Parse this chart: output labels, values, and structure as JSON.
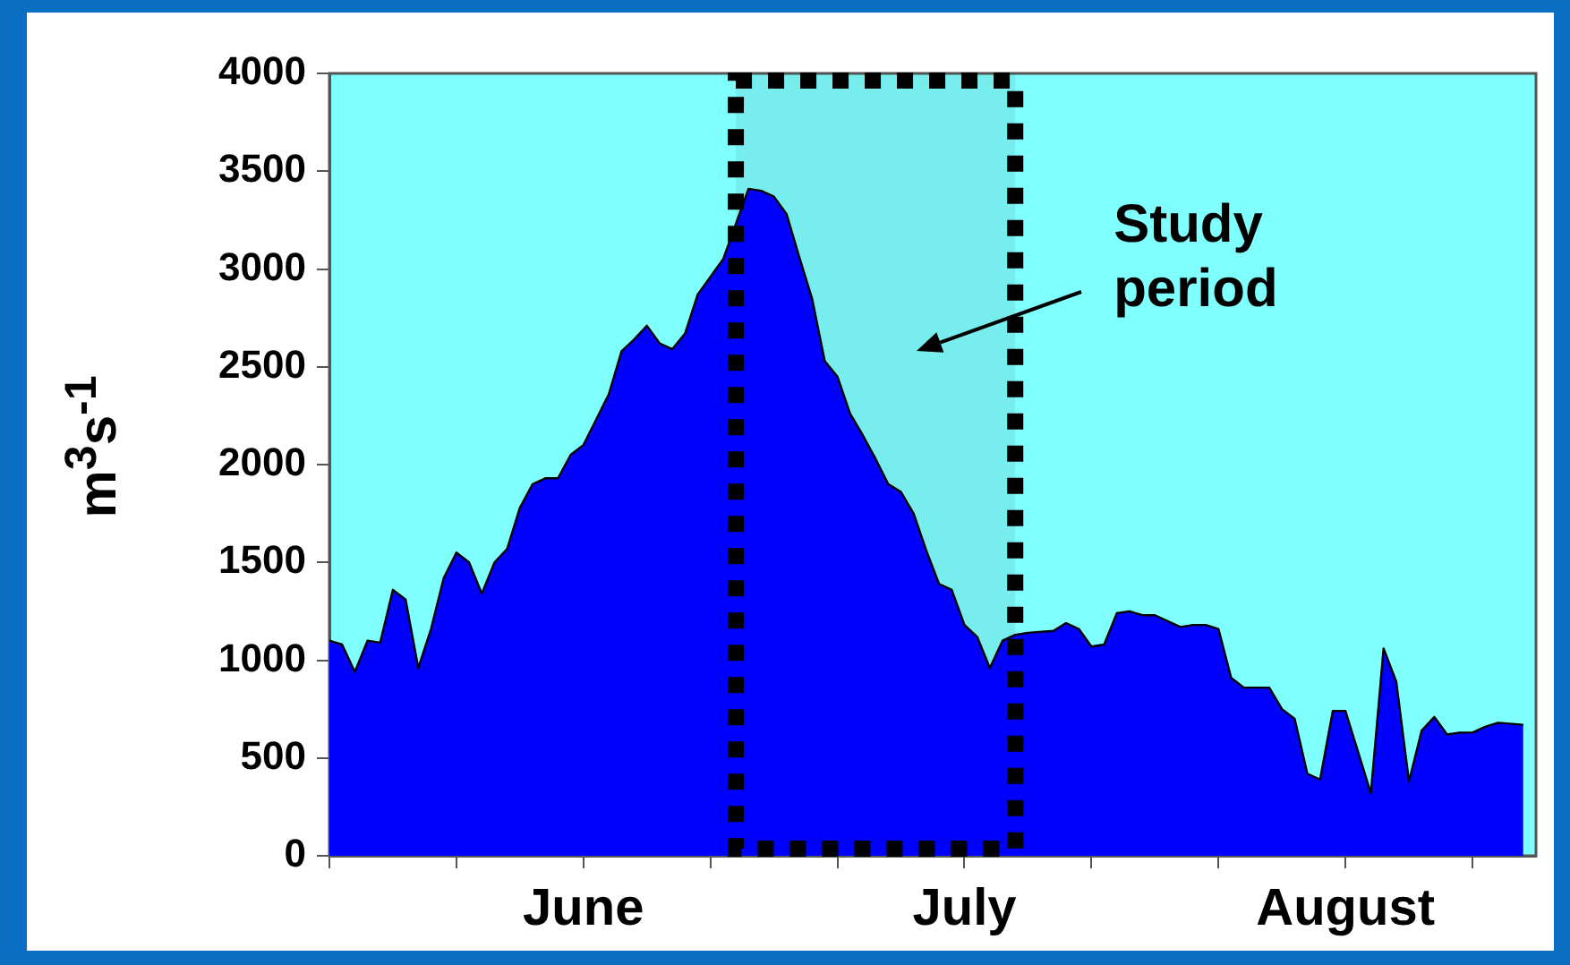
{
  "chart_data": {
    "type": "area",
    "ylabel": "m$^{3}$s$^{-1}$",
    "x": [
      "--05-26",
      "--05-27",
      "--05-28",
      "--05-29",
      "--05-30",
      "--05-31",
      "--06-01",
      "--06-02",
      "--06-03",
      "--06-04",
      "--06-05",
      "--06-06",
      "--06-07",
      "--06-08",
      "--06-09",
      "--06-10",
      "--06-11",
      "--06-12",
      "--06-13",
      "--06-14",
      "--06-15",
      "--06-16",
      "--06-17",
      "--06-18",
      "--06-19",
      "--06-20",
      "--06-21",
      "--06-22",
      "--06-23",
      "--06-24",
      "--06-25",
      "--06-26",
      "--06-27",
      "--06-28",
      "--06-29",
      "--06-30",
      "--07-01",
      "--07-02",
      "--07-03",
      "--07-04",
      "--07-05",
      "--07-06",
      "--07-07",
      "--07-08",
      "--07-09",
      "--07-10",
      "--07-11",
      "--07-12",
      "--07-13",
      "--07-14",
      "--07-15",
      "--07-16",
      "--07-17",
      "--07-18",
      "--07-19",
      "--07-20",
      "--07-22",
      "--07-23",
      "--07-24",
      "--07-25",
      "--07-26",
      "--07-27",
      "--07-28",
      "--07-29",
      "--07-30",
      "--07-31",
      "--08-01",
      "--08-02",
      "--08-03",
      "--08-04",
      "--08-05",
      "--08-06",
      "--08-08",
      "--08-09",
      "--08-10",
      "--08-11",
      "--08-12",
      "--08-13",
      "--08-14",
      "--08-16",
      "--08-17",
      "--08-18",
      "--08-19",
      "--08-20",
      "--08-21",
      "--08-22",
      "--08-23",
      "--08-24",
      "--08-25",
      "--08-26",
      "--08-28"
    ],
    "series": [
      {
        "color": "#0000ff",
        "values": [
          1100,
          1080,
          940,
          1100,
          1090,
          1360,
          1310,
          960,
          1160,
          1420,
          1550,
          1500,
          1340,
          1500,
          1570,
          1780,
          1900,
          1930,
          1930,
          2050,
          2100,
          2230,
          2360,
          2580,
          2640,
          2710,
          2620,
          2590,
          2670,
          2870,
          2960,
          3050,
          3230,
          3410,
          3400,
          3370,
          3280,
          3060,
          2850,
          2530,
          2450,
          2260,
          2150,
          2030,
          1900,
          1860,
          1750,
          1560,
          1390,
          1360,
          1180,
          1120,
          960,
          1100,
          1130,
          1140,
          1150,
          1190,
          1160,
          1070,
          1080,
          1240,
          1250,
          1230,
          1230,
          1200,
          1170,
          1180,
          1180,
          1160,
          910,
          860,
          860,
          750,
          700,
          420,
          390,
          740,
          740,
          320,
          1060,
          890,
          380,
          640,
          710,
          620,
          630,
          630,
          660,
          680,
          670
        ]
      }
    ],
    "xlim": [
      "--05-26",
      "--08-29"
    ],
    "xticks": [
      {
        "value": "--05-26",
        "label": null
      },
      {
        "value": "--06-05",
        "label": null
      },
      {
        "value": "--06-15",
        "label": "June"
      },
      {
        "value": "--06-25",
        "label": null
      },
      {
        "value": "--07-05",
        "label": null
      },
      {
        "value": "--07-15",
        "label": "July"
      },
      {
        "value": "--07-25",
        "label": null
      },
      {
        "value": "--08-04",
        "label": null
      },
      {
        "value": "--08-14",
        "label": "August"
      },
      {
        "value": "--08-24",
        "label": null
      }
    ],
    "ylim": [
      0,
      4000
    ],
    "yticks": [
      0,
      500,
      1000,
      1500,
      2000,
      2500,
      3000,
      3500,
      4000
    ],
    "bands": [
      {
        "axis": "x",
        "from": "--06-27",
        "to": "--07-19",
        "label": "Study period",
        "color": "#000000"
      }
    ]
  }
}
